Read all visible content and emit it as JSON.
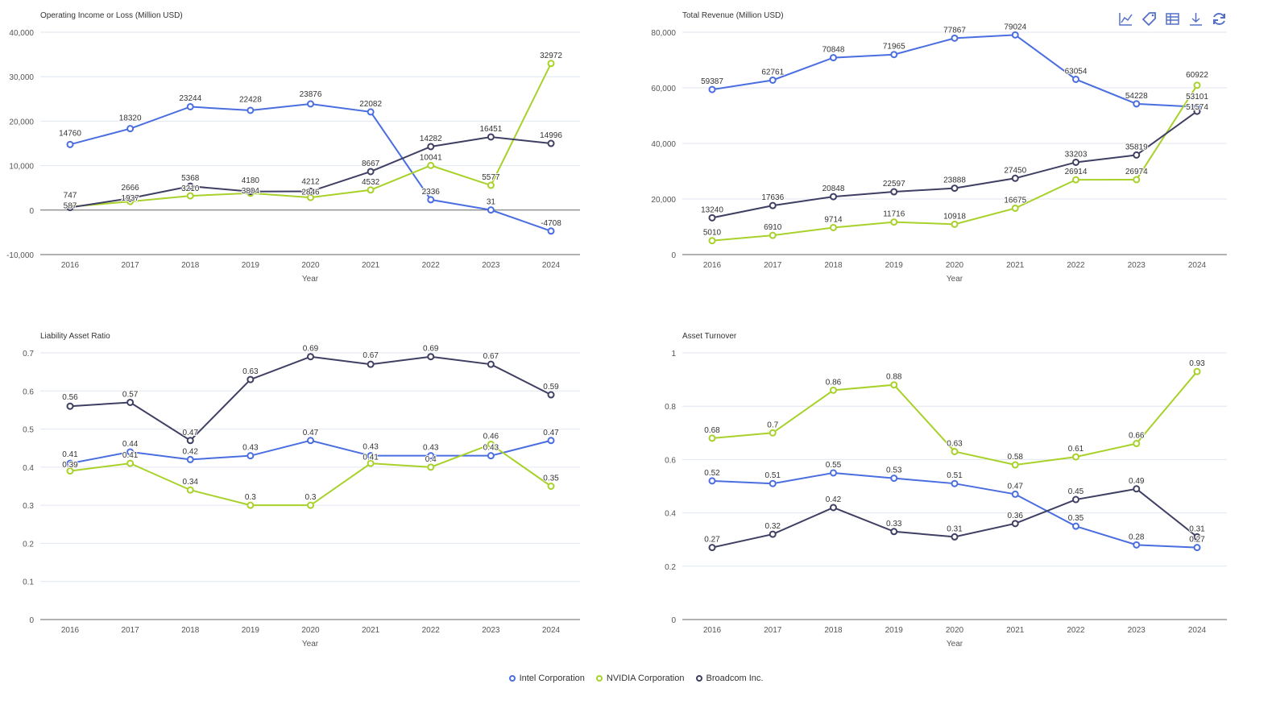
{
  "colors": {
    "Intel Corporation": "#4a6ee0",
    "NVIDIA Corporation": "#a8d12a",
    "Broadcom Inc.": "#3f3f63"
  },
  "legend": [
    "Intel Corporation",
    "NVIDIA Corporation",
    "Broadcom Inc."
  ],
  "toolbar": [
    "line-chart-icon",
    "tag-icon",
    "data-table-icon",
    "download-icon",
    "refresh-icon"
  ],
  "chart_data": [
    {
      "type": "line",
      "title": "Operating Income or Loss (Million USD)",
      "xlabel": "Year",
      "categories": [
        "2016",
        "2017",
        "2018",
        "2019",
        "2020",
        "2021",
        "2022",
        "2023",
        "2024"
      ],
      "ylim": [
        -10000,
        40000
      ],
      "yticks": [
        "-10,000",
        "0",
        "10,000",
        "20,000",
        "30,000",
        "40,000"
      ],
      "grid": true,
      "series": [
        {
          "name": "Intel Corporation",
          "values": [
            14760,
            18320,
            23244,
            22428,
            23876,
            22082,
            2336,
            31,
            -4708
          ]
        },
        {
          "name": "NVIDIA Corporation",
          "values": [
            747,
            1937,
            3210,
            3804,
            2846,
            4532,
            10041,
            5577,
            32972
          ]
        },
        {
          "name": "Broadcom Inc.",
          "values": [
            587,
            2666,
            5368,
            4180,
            4212,
            8667,
            14282,
            16451,
            14996
          ]
        }
      ]
    },
    {
      "type": "line",
      "title": "Total Revenue (Million USD)",
      "xlabel": "Year",
      "categories": [
        "2016",
        "2017",
        "2018",
        "2019",
        "2020",
        "2021",
        "2022",
        "2023",
        "2024"
      ],
      "ylim": [
        0,
        80000
      ],
      "yticks": [
        "0",
        "20,000",
        "40,000",
        "60,000",
        "80,000"
      ],
      "grid": true,
      "series": [
        {
          "name": "Intel Corporation",
          "values": [
            59387,
            62761,
            70848,
            71965,
            77867,
            79024,
            63054,
            54228,
            53101
          ]
        },
        {
          "name": "NVIDIA Corporation",
          "values": [
            5010,
            6910,
            9714,
            11716,
            10918,
            16675,
            26914,
            26974,
            60922
          ]
        },
        {
          "name": "Broadcom Inc.",
          "values": [
            13240,
            17636,
            20848,
            22597,
            23888,
            27450,
            33203,
            35819,
            51574
          ]
        }
      ]
    },
    {
      "type": "line",
      "title": "Liability Asset Ratio",
      "xlabel": "Year",
      "categories": [
        "2016",
        "2017",
        "2018",
        "2019",
        "2020",
        "2021",
        "2022",
        "2023",
        "2024"
      ],
      "ylim": [
        0,
        0.7
      ],
      "yticks": [
        "0",
        "0.1",
        "0.2",
        "0.3",
        "0.4",
        "0.5",
        "0.6",
        "0.7"
      ],
      "grid": true,
      "series": [
        {
          "name": "Intel Corporation",
          "values": [
            0.41,
            0.44,
            0.42,
            0.43,
            0.47,
            0.43,
            0.43,
            0.43,
            0.47
          ]
        },
        {
          "name": "NVIDIA Corporation",
          "values": [
            0.39,
            0.41,
            0.34,
            0.3,
            0.3,
            0.41,
            0.4,
            0.46,
            0.35
          ]
        },
        {
          "name": "Broadcom Inc.",
          "values": [
            0.56,
            0.57,
            0.47,
            0.63,
            0.69,
            0.67,
            0.69,
            0.67,
            0.59
          ]
        }
      ]
    },
    {
      "type": "line",
      "title": "Asset Turnover",
      "xlabel": "Year",
      "categories": [
        "2016",
        "2017",
        "2018",
        "2019",
        "2020",
        "2021",
        "2022",
        "2023",
        "2024"
      ],
      "ylim": [
        0,
        1
      ],
      "yticks": [
        "0",
        "0.2",
        "0.4",
        "0.6",
        "0.8",
        "1"
      ],
      "grid": true,
      "series": [
        {
          "name": "Intel Corporation",
          "values": [
            0.52,
            0.51,
            0.55,
            0.53,
            0.51,
            0.47,
            0.35,
            0.28,
            0.27
          ]
        },
        {
          "name": "NVIDIA Corporation",
          "values": [
            0.68,
            0.7,
            0.86,
            0.88,
            0.63,
            0.58,
            0.61,
            0.66,
            0.93
          ]
        },
        {
          "name": "Broadcom Inc.",
          "values": [
            0.27,
            0.32,
            0.42,
            0.33,
            0.31,
            0.36,
            0.45,
            0.49,
            0.31
          ]
        }
      ]
    }
  ]
}
